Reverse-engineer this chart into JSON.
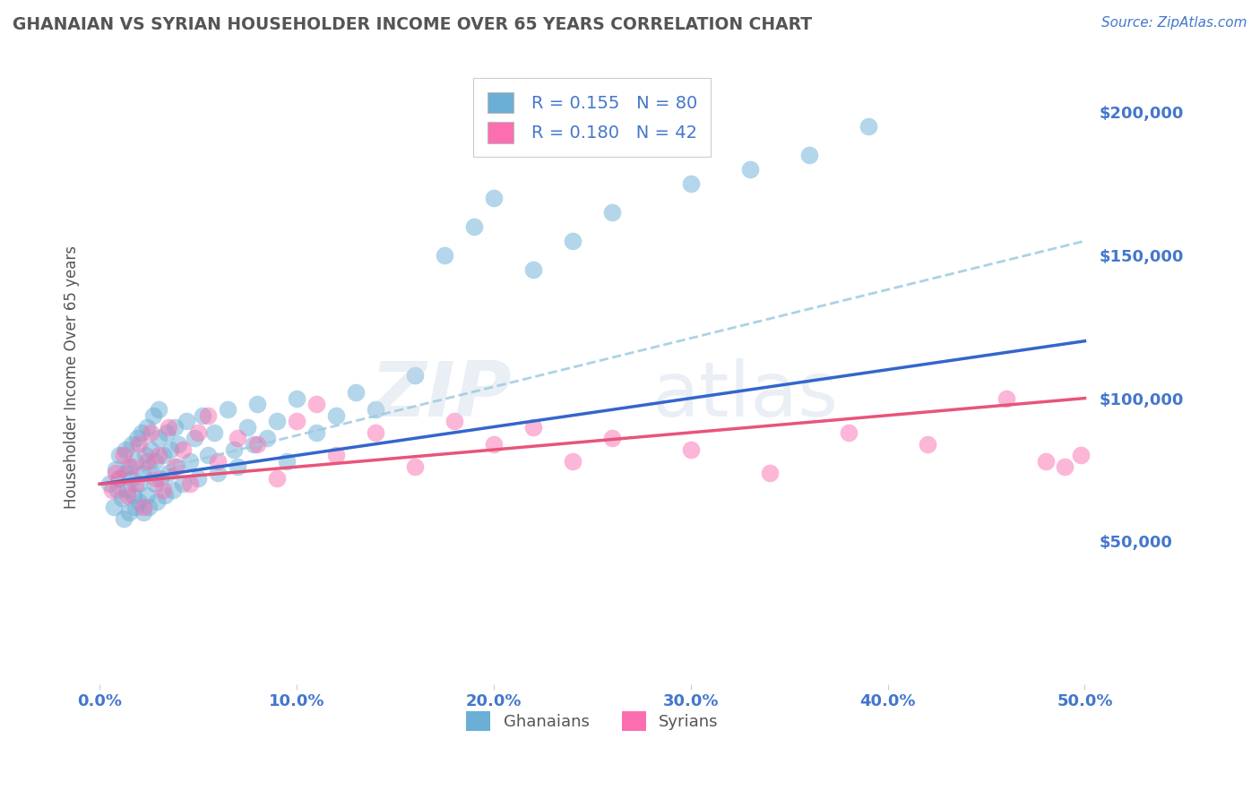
{
  "title": "GHANAIAN VS SYRIAN HOUSEHOLDER INCOME OVER 65 YEARS CORRELATION CHART",
  "source": "Source: ZipAtlas.com",
  "ylabel": "Householder Income Over 65 years",
  "xlabel_ticks": [
    "0.0%",
    "10.0%",
    "20.0%",
    "30.0%",
    "40.0%",
    "50.0%"
  ],
  "xlabel_vals": [
    0.0,
    0.1,
    0.2,
    0.3,
    0.4,
    0.5
  ],
  "ytick_labels": [
    "$50,000",
    "$100,000",
    "$150,000",
    "$200,000"
  ],
  "ytick_vals": [
    50000,
    100000,
    150000,
    200000
  ],
  "xlim": [
    -0.005,
    0.505
  ],
  "ylim": [
    0,
    215000
  ],
  "ghanaian_R": "0.155",
  "ghanaian_N": "80",
  "syrian_R": "0.180",
  "syrian_N": "42",
  "ghanaian_color": "#6baed6",
  "syrian_color": "#fb6eb0",
  "ghanaian_line_color": "#3366cc",
  "syrian_line_color": "#e8547a",
  "dashed_line_color": "#9ecae1",
  "watermark_zip": "ZIP",
  "watermark_atlas": "atlas",
  "background_color": "#ffffff",
  "title_color": "#555555",
  "axis_label_color": "#4477cc",
  "legend_text_color_1": "#4477cc",
  "legend_text_color_2": "#4477cc",
  "ghanaian_x": [
    0.005,
    0.007,
    0.008,
    0.009,
    0.01,
    0.01,
    0.011,
    0.012,
    0.013,
    0.013,
    0.014,
    0.015,
    0.015,
    0.016,
    0.016,
    0.017,
    0.018,
    0.018,
    0.019,
    0.02,
    0.02,
    0.021,
    0.022,
    0.022,
    0.023,
    0.024,
    0.024,
    0.025,
    0.025,
    0.026,
    0.027,
    0.028,
    0.028,
    0.029,
    0.03,
    0.03,
    0.031,
    0.032,
    0.033,
    0.034,
    0.035,
    0.036,
    0.037,
    0.038,
    0.039,
    0.04,
    0.042,
    0.044,
    0.046,
    0.048,
    0.05,
    0.052,
    0.055,
    0.058,
    0.06,
    0.065,
    0.068,
    0.07,
    0.075,
    0.078,
    0.08,
    0.085,
    0.09,
    0.095,
    0.1,
    0.11,
    0.12,
    0.13,
    0.14,
    0.16,
    0.175,
    0.19,
    0.2,
    0.22,
    0.24,
    0.26,
    0.3,
    0.33,
    0.36,
    0.39
  ],
  "ghanaian_y": [
    70000,
    62000,
    75000,
    68000,
    72000,
    80000,
    65000,
    58000,
    74000,
    82000,
    68000,
    76000,
    60000,
    84000,
    72000,
    66000,
    78000,
    62000,
    86000,
    70000,
    64000,
    88000,
    74000,
    60000,
    80000,
    90000,
    66000,
    76000,
    62000,
    82000,
    94000,
    70000,
    78000,
    64000,
    86000,
    96000,
    72000,
    80000,
    66000,
    88000,
    74000,
    82000,
    68000,
    90000,
    76000,
    84000,
    70000,
    92000,
    78000,
    86000,
    72000,
    94000,
    80000,
    88000,
    74000,
    96000,
    82000,
    76000,
    90000,
    84000,
    98000,
    86000,
    92000,
    78000,
    100000,
    88000,
    94000,
    102000,
    96000,
    108000,
    150000,
    160000,
    170000,
    145000,
    155000,
    165000,
    175000,
    180000,
    185000,
    195000
  ],
  "syrian_x": [
    0.006,
    0.008,
    0.01,
    0.012,
    0.014,
    0.016,
    0.018,
    0.02,
    0.022,
    0.024,
    0.026,
    0.028,
    0.03,
    0.032,
    0.035,
    0.038,
    0.042,
    0.046,
    0.05,
    0.055,
    0.06,
    0.07,
    0.08,
    0.09,
    0.1,
    0.11,
    0.12,
    0.14,
    0.16,
    0.18,
    0.2,
    0.22,
    0.24,
    0.26,
    0.3,
    0.34,
    0.38,
    0.42,
    0.46,
    0.48,
    0.49,
    0.498
  ],
  "syrian_y": [
    68000,
    74000,
    72000,
    80000,
    66000,
    76000,
    70000,
    84000,
    62000,
    78000,
    88000,
    72000,
    80000,
    68000,
    90000,
    76000,
    82000,
    70000,
    88000,
    94000,
    78000,
    86000,
    84000,
    72000,
    92000,
    98000,
    80000,
    88000,
    76000,
    92000,
    84000,
    90000,
    78000,
    86000,
    82000,
    74000,
    88000,
    84000,
    100000,
    78000,
    76000,
    80000
  ]
}
